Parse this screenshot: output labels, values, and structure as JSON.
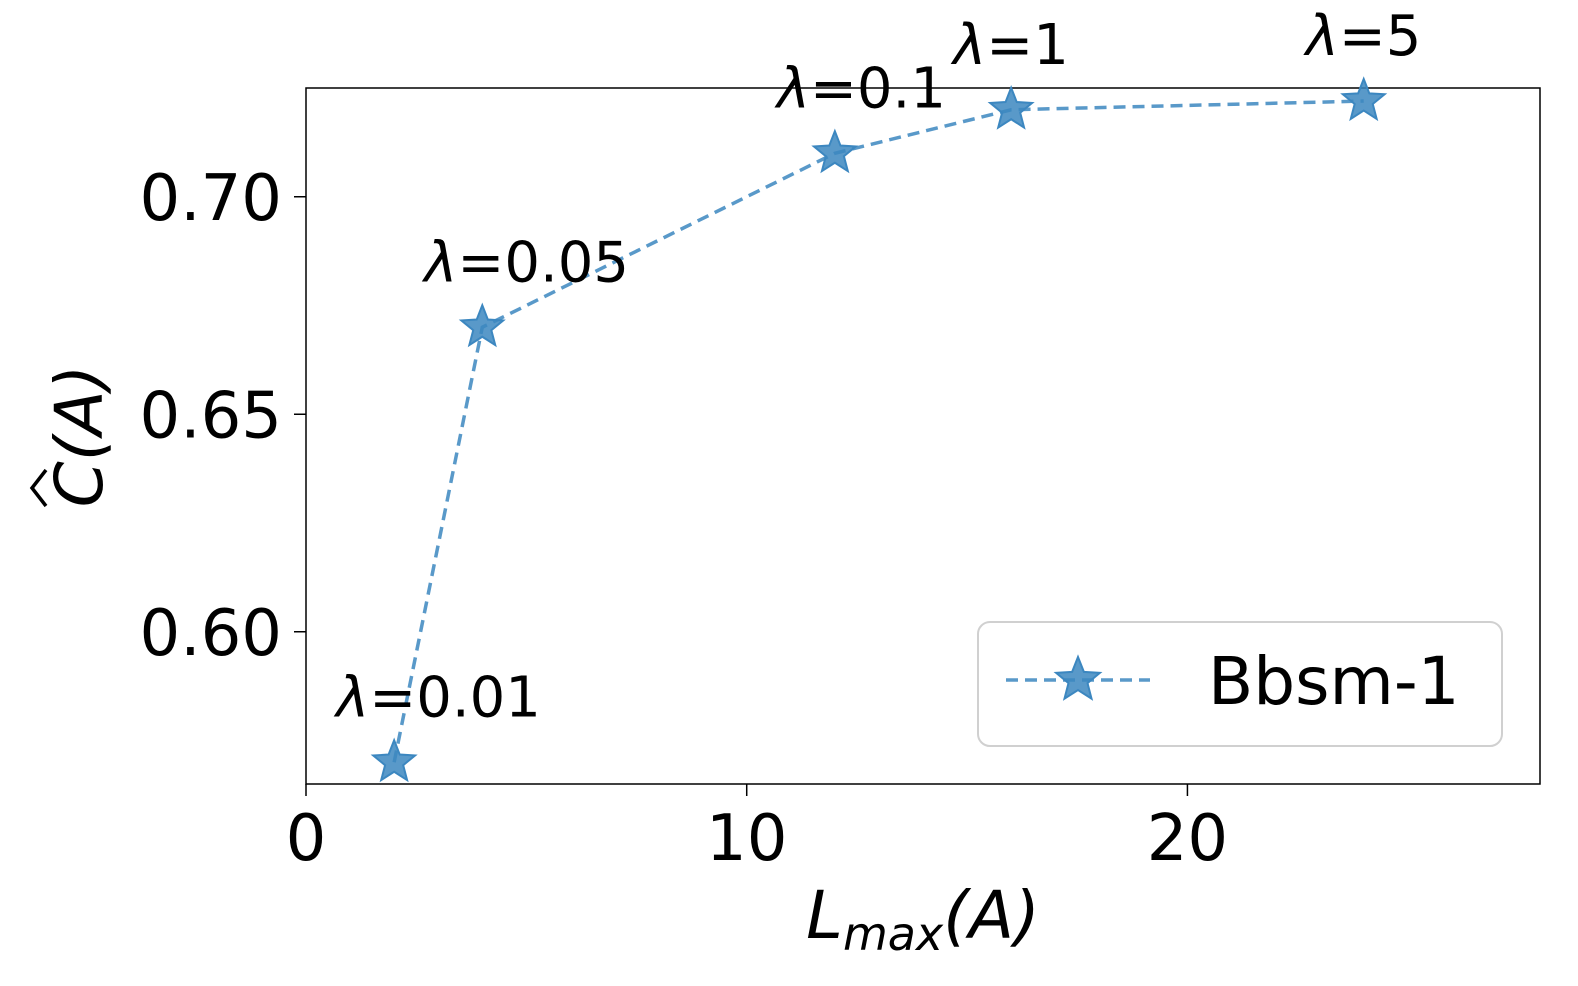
{
  "chart_data": {
    "type": "line",
    "xlabel": "L_max(A)",
    "xlabel_main": "L",
    "xlabel_sub": "max",
    "xlabel_arg": "(A)",
    "ylabel": "Ĉ(A)",
    "ylabel_main": "C",
    "ylabel_arg": "(A)",
    "xlim": [
      0,
      28
    ],
    "ylim": [
      0.565,
      0.725
    ],
    "xticks": [
      0,
      10,
      20
    ],
    "xtick_labels": [
      "0",
      "10",
      "20"
    ],
    "yticks": [
      0.6,
      0.65,
      0.7
    ],
    "ytick_labels": [
      "0.60",
      "0.65",
      "0.70"
    ],
    "grid": false,
    "legend_position": "bottom-right",
    "series": [
      {
        "name": "Bbsm-1",
        "color": "#3c87c0",
        "line_style": "dashed",
        "marker": "star",
        "x": [
          2,
          4,
          12,
          16,
          24
        ],
        "y": [
          0.57,
          0.67,
          0.71,
          0.72,
          0.722
        ],
        "point_labels": [
          "λ=0.01",
          "λ=0.05",
          "λ=0.1",
          "λ=1",
          "λ=5"
        ]
      }
    ]
  }
}
